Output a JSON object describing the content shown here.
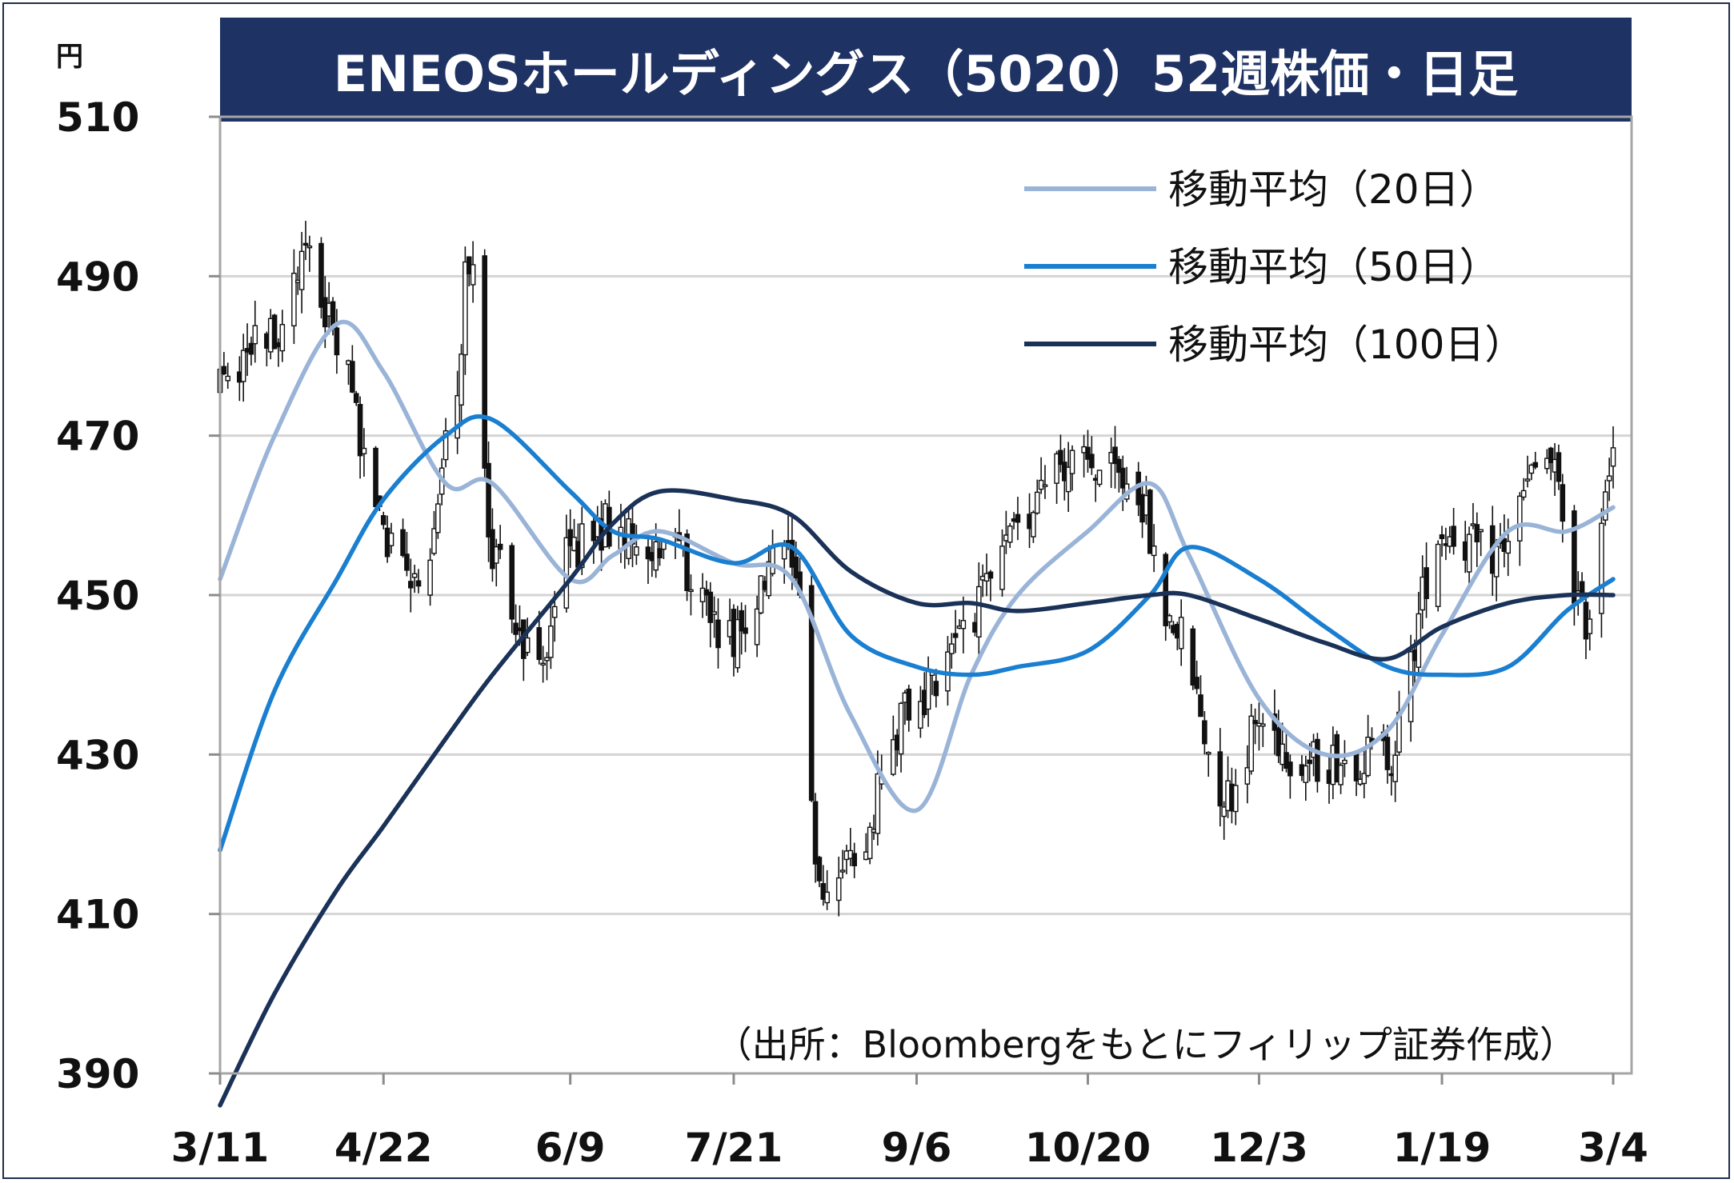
{
  "chart_data": {
    "type": "candlestick",
    "title": "ENEOSホールディングス（5020）52週株価・日足",
    "y_unit": "円",
    "ylim": [
      390,
      510
    ],
    "y_ticks": [
      "510",
      "490",
      "470",
      "450",
      "430",
      "410",
      "390"
    ],
    "x_ticks": [
      "3/11",
      "4/22",
      "6/9",
      "7/21",
      "9/6",
      "10/20",
      "12/3",
      "1/19",
      "3/4"
    ],
    "grid": "horizontal",
    "legend_position": "top-right",
    "legend": [
      {
        "label": "移動平均（20日）",
        "color": "#9ab4d8"
      },
      {
        "label": "移動平均（50日）",
        "color": "#1a7fd0"
      },
      {
        "label": "移動平均（100日）",
        "color": "#1b3258"
      }
    ],
    "source": "（出所：Bloombergをもとにフィリップ証券作成）",
    "price_anchors": [
      {
        "date": "3/11",
        "close": 476
      },
      {
        "date": "3/25",
        "close": 483
      },
      {
        "date": "4/2",
        "close": 494
      },
      {
        "date": "4/10",
        "close": 482
      },
      {
        "date": "4/22",
        "close": 458
      },
      {
        "date": "5/1",
        "close": 452
      },
      {
        "date": "5/10",
        "close": 472
      },
      {
        "date": "5/14",
        "close": 492
      },
      {
        "date": "5/20",
        "close": 455
      },
      {
        "date": "5/31",
        "close": 441
      },
      {
        "date": "6/9",
        "close": 456
      },
      {
        "date": "6/20",
        "close": 459
      },
      {
        "date": "7/2",
        "close": 457
      },
      {
        "date": "7/21",
        "close": 445
      },
      {
        "date": "8/5",
        "close": 456
      },
      {
        "date": "8/12",
        "close": 413
      },
      {
        "date": "8/20",
        "close": 418
      },
      {
        "date": "9/6",
        "close": 437
      },
      {
        "date": "9/20",
        "close": 448
      },
      {
        "date": "10/2",
        "close": 457
      },
      {
        "date": "10/10",
        "close": 467
      },
      {
        "date": "10/20",
        "close": 466
      },
      {
        "date": "11/1",
        "close": 464
      },
      {
        "date": "11/10",
        "close": 447
      },
      {
        "date": "11/25",
        "close": 425
      },
      {
        "date": "12/3",
        "close": 434
      },
      {
        "date": "12/15",
        "close": 429
      },
      {
        "date": "1/5",
        "close": 430
      },
      {
        "date": "1/19",
        "close": 458
      },
      {
        "date": "2/1",
        "close": 455
      },
      {
        "date": "2/15",
        "close": 467
      },
      {
        "date": "2/25",
        "close": 447
      },
      {
        "date": "3/4",
        "close": 469
      }
    ],
    "series": [
      {
        "name": "移動平均（20日）",
        "points": [
          {
            "date": "3/11",
            "value": 452
          },
          {
            "date": "3/25",
            "value": 470
          },
          {
            "date": "4/10",
            "value": 484
          },
          {
            "date": "4/22",
            "value": 478
          },
          {
            "date": "5/8",
            "value": 464
          },
          {
            "date": "5/20",
            "value": 464
          },
          {
            "date": "6/9",
            "value": 452
          },
          {
            "date": "6/20",
            "value": 455
          },
          {
            "date": "7/2",
            "value": 458
          },
          {
            "date": "7/21",
            "value": 454
          },
          {
            "date": "8/5",
            "value": 452
          },
          {
            "date": "8/20",
            "value": 435
          },
          {
            "date": "9/6",
            "value": 423
          },
          {
            "date": "9/20",
            "value": 440
          },
          {
            "date": "10/2",
            "value": 450
          },
          {
            "date": "10/20",
            "value": 458
          },
          {
            "date": "11/5",
            "value": 464
          },
          {
            "date": "11/15",
            "value": 455
          },
          {
            "date": "12/3",
            "value": 437
          },
          {
            "date": "12/20",
            "value": 430
          },
          {
            "date": "1/5",
            "value": 433
          },
          {
            "date": "1/19",
            "value": 445
          },
          {
            "date": "2/5",
            "value": 458
          },
          {
            "date": "2/20",
            "value": 458
          },
          {
            "date": "3/4",
            "value": 461
          }
        ]
      },
      {
        "name": "移動平均（50日）",
        "points": [
          {
            "date": "3/11",
            "value": 418
          },
          {
            "date": "3/25",
            "value": 438
          },
          {
            "date": "4/10",
            "value": 452
          },
          {
            "date": "4/22",
            "value": 462
          },
          {
            "date": "5/8",
            "value": 470
          },
          {
            "date": "5/20",
            "value": 472
          },
          {
            "date": "6/9",
            "value": 463
          },
          {
            "date": "6/20",
            "value": 458
          },
          {
            "date": "7/2",
            "value": 457
          },
          {
            "date": "7/21",
            "value": 454
          },
          {
            "date": "8/5",
            "value": 456
          },
          {
            "date": "8/20",
            "value": 445
          },
          {
            "date": "9/6",
            "value": 441
          },
          {
            "date": "9/20",
            "value": 440
          },
          {
            "date": "10/2",
            "value": 441
          },
          {
            "date": "10/20",
            "value": 443
          },
          {
            "date": "11/5",
            "value": 450
          },
          {
            "date": "11/15",
            "value": 456
          },
          {
            "date": "12/3",
            "value": 452
          },
          {
            "date": "12/20",
            "value": 446
          },
          {
            "date": "1/5",
            "value": 441
          },
          {
            "date": "1/19",
            "value": 440
          },
          {
            "date": "2/5",
            "value": 441
          },
          {
            "date": "2/20",
            "value": 448
          },
          {
            "date": "3/4",
            "value": 452
          }
        ]
      },
      {
        "name": "移動平均（100日）",
        "points": [
          {
            "date": "3/11",
            "value": 386
          },
          {
            "date": "3/25",
            "value": 400
          },
          {
            "date": "4/10",
            "value": 413
          },
          {
            "date": "4/22",
            "value": 421
          },
          {
            "date": "5/8",
            "value": 432
          },
          {
            "date": "5/20",
            "value": 440
          },
          {
            "date": "6/9",
            "value": 452
          },
          {
            "date": "6/20",
            "value": 459
          },
          {
            "date": "7/2",
            "value": 463
          },
          {
            "date": "7/21",
            "value": 462
          },
          {
            "date": "8/5",
            "value": 460
          },
          {
            "date": "8/20",
            "value": 453
          },
          {
            "date": "9/6",
            "value": 449
          },
          {
            "date": "9/20",
            "value": 449
          },
          {
            "date": "10/2",
            "value": 448
          },
          {
            "date": "10/20",
            "value": 449
          },
          {
            "date": "11/5",
            "value": 450
          },
          {
            "date": "11/15",
            "value": 450
          },
          {
            "date": "12/3",
            "value": 447
          },
          {
            "date": "12/20",
            "value": 444
          },
          {
            "date": "1/5",
            "value": 442
          },
          {
            "date": "1/19",
            "value": 446
          },
          {
            "date": "2/5",
            "value": 449
          },
          {
            "date": "2/20",
            "value": 450
          },
          {
            "date": "3/4",
            "value": 450
          }
        ]
      }
    ]
  }
}
